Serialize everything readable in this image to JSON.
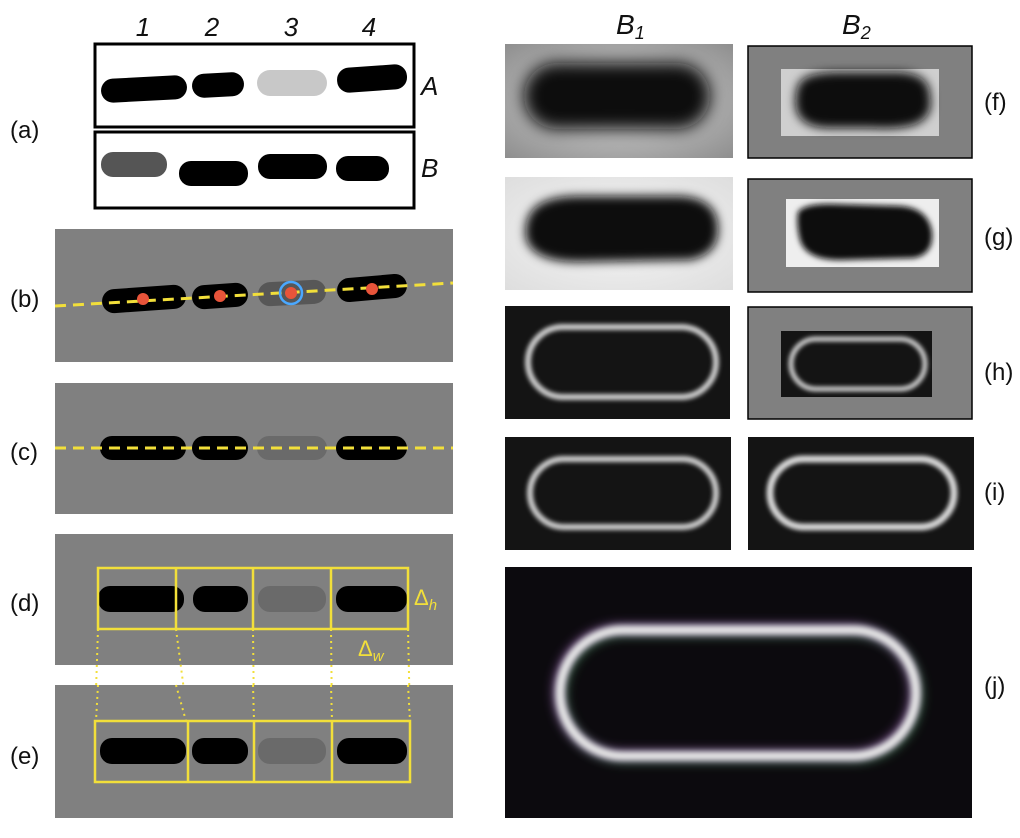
{
  "panel_labels": {
    "a": "(a)",
    "b": "(b)",
    "c": "(c)",
    "d": "(d)",
    "e": "(e)",
    "f": "(f)",
    "g": "(g)",
    "h": "(h)",
    "i": "(i)",
    "j": "(j)"
  },
  "column_numbers": [
    "1",
    "2",
    "3",
    "4"
  ],
  "row_labels": {
    "a": "A",
    "b": "B"
  },
  "column_headers": {
    "b1_base": "B",
    "b1_sub": "1",
    "b2_base": "B",
    "b2_sub": "2"
  },
  "deltas": {
    "h_base": "Δ",
    "h_sub": "h",
    "w_base": "Δ",
    "w_sub": "w"
  },
  "colors": {
    "panel_gray": "#808080",
    "cell_black": "#000000",
    "guide_yellow": "#f2df3a",
    "marker_red": "#e8543a",
    "marker_blue": "#4aa8ff",
    "overlay_magenta": "#c06adf",
    "overlay_green": "#55d06a"
  }
}
